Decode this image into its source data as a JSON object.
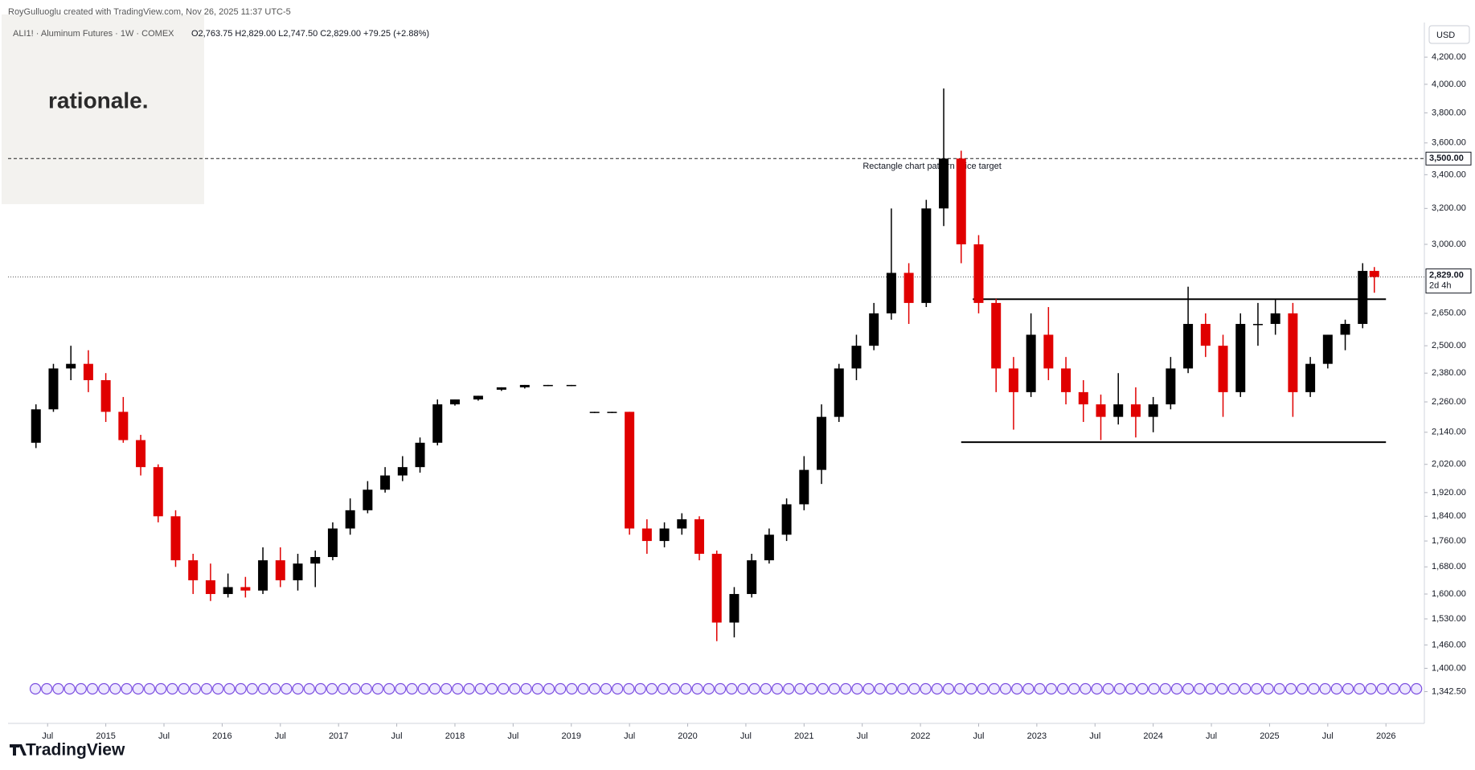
{
  "header": {
    "credit": "RoyGulluoglu created with TradingView.com, Nov 26, 2025 11:37 UTC-5",
    "symbol": "ALI1! · Aluminum Futures · 1W · COMEX",
    "ohlc": "O2,763.75  H2,829.00  L2,747.50  C2,829.00  +79.25 (+2.88%)",
    "logo": "rationale.",
    "currency": "USD",
    "footer": "TradingView"
  },
  "chart_data": {
    "type": "candlestick",
    "log_scale": true,
    "grid": false,
    "up_color": "#000000",
    "down_color": "#e00000",
    "x": [
      2014.4,
      2014.55,
      2014.7,
      2014.85,
      2015.0,
      2015.15,
      2015.3,
      2015.45,
      2015.6,
      2015.75,
      2015.9,
      2016.05,
      2016.2,
      2016.35,
      2016.5,
      2016.65,
      2016.8,
      2016.95,
      2017.1,
      2017.25,
      2017.4,
      2017.55,
      2017.7,
      2017.85,
      2018.0,
      2018.2,
      2018.4,
      2018.6,
      2018.8,
      2019.0,
      2019.2,
      2019.35,
      2019.5,
      2019.65,
      2019.8,
      2019.95,
      2020.1,
      2020.25,
      2020.4,
      2020.55,
      2020.7,
      2020.85,
      2021.0,
      2021.15,
      2021.3,
      2021.45,
      2021.6,
      2021.75,
      2021.9,
      2022.05,
      2022.2,
      2022.35,
      2022.5,
      2022.65,
      2022.8,
      2022.95,
      2023.1,
      2023.25,
      2023.4,
      2023.55,
      2023.7,
      2023.85,
      2024.0,
      2024.15,
      2024.3,
      2024.45,
      2024.6,
      2024.75,
      2024.9,
      2025.05,
      2025.2,
      2025.35,
      2025.5,
      2025.65,
      2025.8,
      2025.9
    ],
    "open": [
      2100,
      2230,
      2400,
      2420,
      2350,
      2220,
      2110,
      2010,
      1840,
      1700,
      1640,
      1600,
      1620,
      1610,
      1700,
      1640,
      1690,
      1710,
      1800,
      1860,
      1930,
      1980,
      2010,
      2100,
      2250,
      2270,
      2310,
      2320,
      2330,
      2330,
      2220,
      2220,
      2220,
      1800,
      1760,
      1800,
      1830,
      1720,
      1520,
      1600,
      1700,
      1780,
      1880,
      2000,
      2200,
      2400,
      2500,
      2650,
      2850,
      2700,
      3200,
      3500,
      3000,
      2700,
      2400,
      2300,
      2550,
      2400,
      2300,
      2250,
      2200,
      2250,
      2200,
      2250,
      2400,
      2600,
      2500,
      2300,
      2600,
      2600,
      2650,
      2300,
      2420,
      2550,
      2600,
      2860
    ],
    "high": [
      2250,
      2420,
      2500,
      2480,
      2380,
      2280,
      2130,
      2020,
      1860,
      1720,
      1690,
      1660,
      1650,
      1740,
      1740,
      1720,
      1730,
      1820,
      1900,
      1960,
      2010,
      2050,
      2120,
      2270,
      2270,
      2285,
      2320,
      2330,
      2330,
      2330,
      2220,
      2220,
      2220,
      1830,
      1820,
      1850,
      1840,
      1730,
      1620,
      1720,
      1800,
      1900,
      2050,
      2250,
      2420,
      2550,
      2700,
      3200,
      2900,
      3250,
      3970,
      3550,
      3050,
      2720,
      2450,
      2650,
      2680,
      2450,
      2350,
      2290,
      2380,
      2320,
      2280,
      2450,
      2780,
      2650,
      2550,
      2650,
      2700,
      2720,
      2700,
      2450,
      2550,
      2620,
      2900,
      2880
    ],
    "low": [
      2080,
      2220,
      2350,
      2300,
      2180,
      2100,
      1980,
      1820,
      1680,
      1600,
      1580,
      1590,
      1590,
      1600,
      1620,
      1610,
      1620,
      1700,
      1780,
      1850,
      1920,
      1960,
      1990,
      2090,
      2245,
      2265,
      2305,
      2315,
      2325,
      2325,
      2215,
      2215,
      1780,
      1720,
      1740,
      1780,
      1700,
      1470,
      1480,
      1590,
      1690,
      1760,
      1860,
      1950,
      2180,
      2350,
      2480,
      2620,
      2600,
      2680,
      3100,
      2900,
      2650,
      2300,
      2150,
      2280,
      2350,
      2250,
      2180,
      2110,
      2170,
      2120,
      2140,
      2230,
      2380,
      2450,
      2200,
      2280,
      2500,
      2550,
      2200,
      2280,
      2400,
      2480,
      2580,
      2750
    ],
    "close": [
      2230,
      2400,
      2420,
      2350,
      2220,
      2110,
      2010,
      1840,
      1700,
      1640,
      1600,
      1620,
      1610,
      1700,
      1640,
      1690,
      1710,
      1800,
      1860,
      1930,
      1980,
      2010,
      2100,
      2250,
      2270,
      2285,
      2320,
      2330,
      2330,
      2330,
      2220,
      2220,
      1800,
      1760,
      1800,
      1830,
      1720,
      1520,
      1600,
      1700,
      1780,
      1880,
      2000,
      2200,
      2400,
      2500,
      2650,
      2850,
      2700,
      3200,
      3500,
      3000,
      2700,
      2400,
      2300,
      2550,
      2400,
      2300,
      2250,
      2200,
      2250,
      2200,
      2250,
      2400,
      2600,
      2500,
      2300,
      2600,
      2600,
      2650,
      2300,
      2420,
      2550,
      2600,
      2860,
      2829
    ],
    "xlim": [
      2014.16,
      2026.33
    ],
    "ylim": [
      1328,
      4425
    ],
    "xticks": [
      {
        "value": 2014.5,
        "label": "Jul"
      },
      2015,
      {
        "value": 2015.5,
        "label": "Jul"
      },
      2016,
      {
        "value": 2016.5,
        "label": "Jul"
      },
      2017,
      {
        "value": 2017.5,
        "label": "Jul"
      },
      2018,
      {
        "value": 2018.5,
        "label": "Jul"
      },
      2019,
      {
        "value": 2019.5,
        "label": "Jul"
      },
      2020,
      {
        "value": 2020.5,
        "label": "Jul"
      },
      2021,
      {
        "value": 2021.5,
        "label": "Jul"
      },
      2022,
      {
        "value": 2022.5,
        "label": "Jul"
      },
      2023,
      {
        "value": 2023.5,
        "label": "Jul"
      },
      2024,
      {
        "value": 2024.5,
        "label": "Jul"
      },
      2025,
      {
        "value": 2025.5,
        "label": "Jul"
      },
      2026
    ],
    "yticks": [
      {
        "value": 4200,
        "label": "4,200.00"
      },
      {
        "value": 4000,
        "label": "4,000.00"
      },
      {
        "value": 3800,
        "label": "3,800.00"
      },
      {
        "value": 3600,
        "label": "3,600.00"
      },
      {
        "value": 3400,
        "label": "3,400.00"
      },
      {
        "value": 3200,
        "label": "3,200.00"
      },
      {
        "value": 3000,
        "label": "3,000.00"
      },
      {
        "value": 2650,
        "label": "2,650.00"
      },
      {
        "value": 2500,
        "label": "2,500.00"
      },
      {
        "value": 2380,
        "label": "2,380.00"
      },
      {
        "value": 2260,
        "label": "2,260.00"
      },
      {
        "value": 2140,
        "label": "2,140.00"
      },
      {
        "value": 2020,
        "label": "2,020.00"
      },
      {
        "value": 1920,
        "label": "1,920.00"
      },
      {
        "value": 1840,
        "label": "1,840.00"
      },
      {
        "value": 1760,
        "label": "1,760.00"
      },
      {
        "value": 1680,
        "label": "1,680.00"
      },
      {
        "value": 1600,
        "label": "1,600.00"
      },
      {
        "value": 1530,
        "label": "1,530.00"
      },
      {
        "value": 1460,
        "label": "1,460.00"
      },
      {
        "value": 1400,
        "label": "1,400.00"
      },
      {
        "value": 1342.5,
        "label": "1,342.50"
      }
    ],
    "price_target": {
      "value": 3500,
      "label": "3,500.00",
      "text": "Rectangle chart pattern price target"
    },
    "last_price": {
      "value": 2829,
      "label": "2,829.00",
      "countdown": "2d 4h"
    },
    "lines": [
      {
        "y": 2718,
        "x": [
          2022.45,
          2026.0
        ]
      },
      {
        "y": 2102,
        "x": [
          2022.35,
          2026.0
        ]
      }
    ]
  }
}
